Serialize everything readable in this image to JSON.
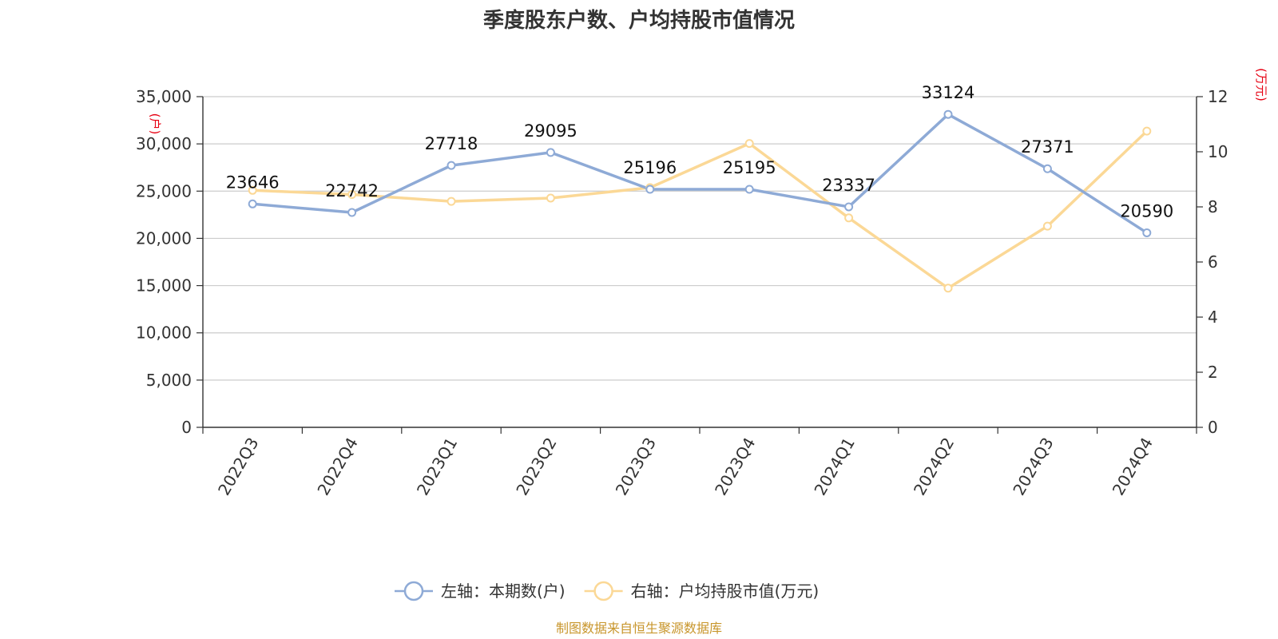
{
  "chart_data": {
    "type": "line",
    "title": "季度股东户数、户均持股市值情况",
    "categories": [
      "2022Q3",
      "2022Q4",
      "2023Q1",
      "2023Q2",
      "2023Q3",
      "2023Q4",
      "2024Q1",
      "2024Q2",
      "2024Q3",
      "2024Q4"
    ],
    "left_axis": {
      "unit": "(户)",
      "ylim": [
        0,
        35000
      ],
      "ticks": [
        {
          "v": 0,
          "label": "0"
        },
        {
          "v": 5000,
          "label": "5,000"
        },
        {
          "v": 10000,
          "label": "10,000"
        },
        {
          "v": 15000,
          "label": "15,000"
        },
        {
          "v": 20000,
          "label": "20,000"
        },
        {
          "v": 25000,
          "label": "25,000"
        },
        {
          "v": 30000,
          "label": "30,000"
        },
        {
          "v": 35000,
          "label": "35,000"
        }
      ]
    },
    "right_axis": {
      "unit": "(万元)",
      "ylim": [
        0,
        12
      ],
      "ticks": [
        {
          "v": 0,
          "label": "0"
        },
        {
          "v": 2,
          "label": "2"
        },
        {
          "v": 4,
          "label": "4"
        },
        {
          "v": 6,
          "label": "6"
        },
        {
          "v": 8,
          "label": "8"
        },
        {
          "v": 10,
          "label": "10"
        },
        {
          "v": 12,
          "label": "12"
        }
      ]
    },
    "series": [
      {
        "name": "左轴：本期数(户)",
        "axis": "left",
        "color": "#8eaad6",
        "values": [
          23646,
          22742,
          27718,
          29095,
          25196,
          25195,
          23337,
          33124,
          27371,
          20590
        ],
        "data_labels": [
          "23646",
          "22742",
          "27718",
          "29095",
          "25196",
          "25195",
          "23337",
          "33124",
          "27371",
          "20590"
        ]
      },
      {
        "name": "右轴：户均持股市值(万元)",
        "axis": "right",
        "color": "#fbd896",
        "values": [
          8.6,
          8.45,
          8.2,
          8.32,
          8.7,
          10.3,
          7.6,
          5.05,
          7.3,
          10.75
        ]
      }
    ],
    "grid": true,
    "legend_position": "bottom-center",
    "source": "制图数据来自恒生聚源数据库"
  }
}
